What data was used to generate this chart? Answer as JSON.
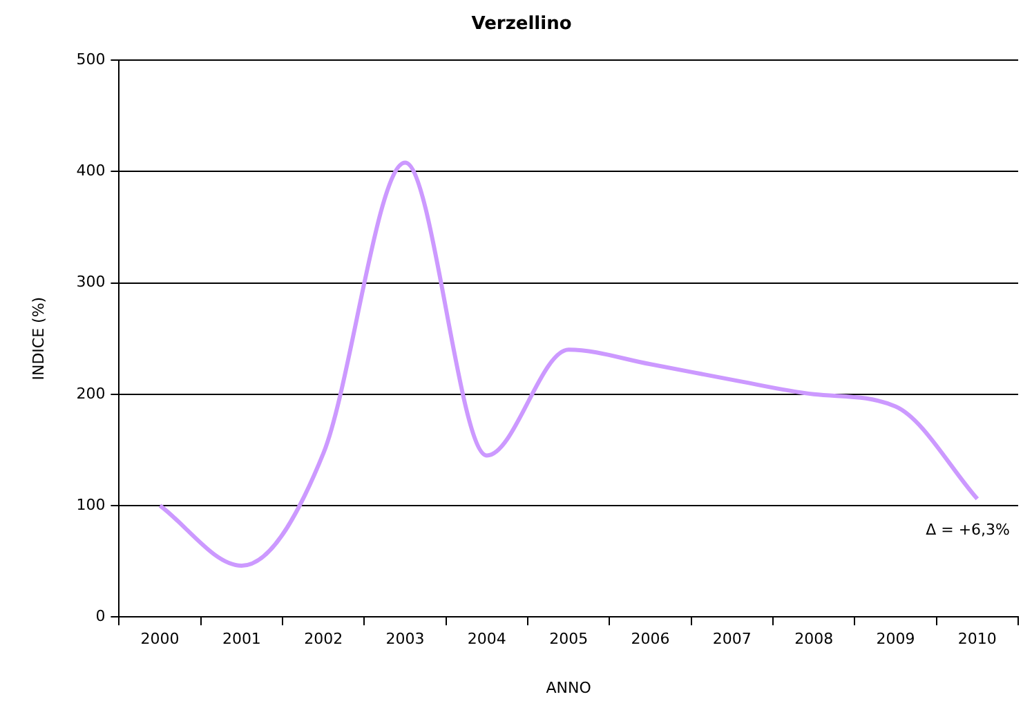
{
  "chart_data": {
    "type": "line",
    "title": "Verzellino",
    "xlabel": "ANNO",
    "ylabel": "INDICE (%)",
    "categories": [
      "2000",
      "2001",
      "2002",
      "2003",
      "2004",
      "2005",
      "2006",
      "2007",
      "2008",
      "2009",
      "2010"
    ],
    "series": [
      {
        "color": "#cc99ff",
        "values": [
          100,
          46,
          147,
          408,
          145,
          240,
          227,
          213,
          200,
          189,
          106
        ]
      }
    ],
    "ylim": [
      0,
      500
    ],
    "yticks": [
      0,
      100,
      200,
      300,
      400,
      500
    ],
    "grid": "y",
    "legend": false,
    "marker": "none",
    "line_style": "solid",
    "annotations": [
      "Δ = +6,3%"
    ]
  }
}
